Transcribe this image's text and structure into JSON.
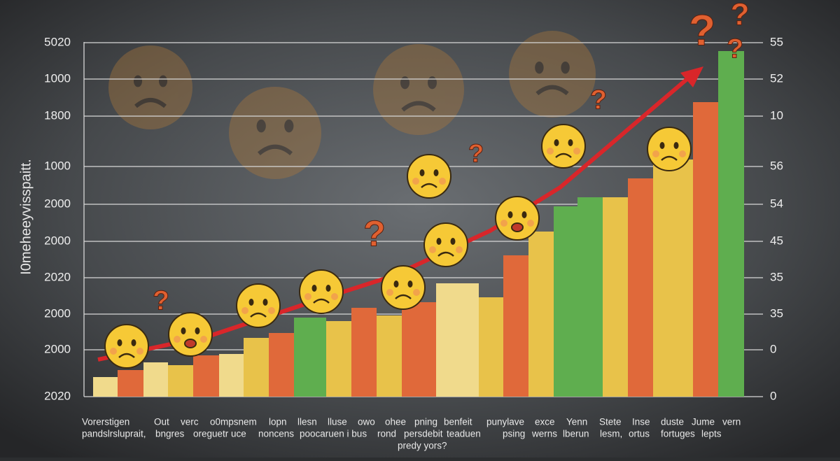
{
  "y_axis_title": "I0meheeyvisspaitt.",
  "left_labels": [
    "5020",
    "1000",
    "1800",
    "1000",
    "2000",
    "2000",
    "2020",
    "2000",
    "2000",
    "2020"
  ],
  "right_labels": [
    "55",
    "52",
    "10",
    "56",
    "54",
    "45",
    "35",
    "35",
    "0",
    "0"
  ],
  "x_labels_row1": [
    "Vorerstigen",
    "Out",
    "verc",
    "o0mpsnem",
    "lopn",
    "llesn",
    "lluse",
    "owo",
    "ohee",
    "pning",
    "benfeit",
    "punylave",
    "exce",
    "Yenn",
    "Stete",
    "Inse",
    "duste",
    "Jume",
    "vern"
  ],
  "x_labels_row2": [
    "pandslrsluprait,",
    "bngres",
    "oreguetr uce",
    "noncens",
    "poocaruen i bus",
    "rond",
    "persdebit",
    "teaduen",
    "psing",
    "werns",
    "lberun",
    "lesm,",
    "ortus",
    "fortuges",
    "lepts"
  ],
  "x_labels_row3": [
    "predy yors?"
  ]
}
